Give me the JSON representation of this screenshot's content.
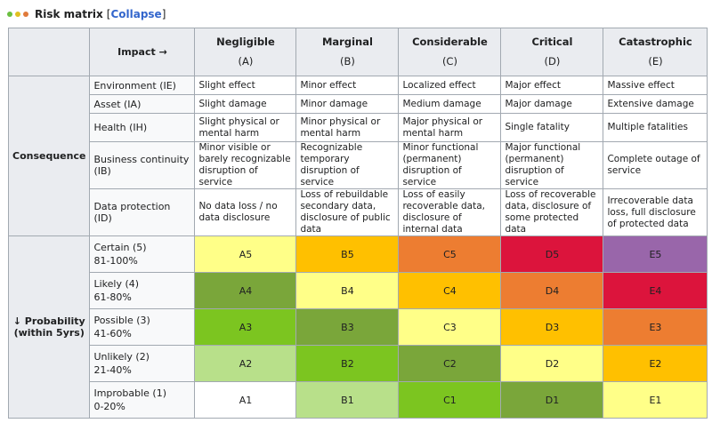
{
  "header": {
    "title": "Risk matrix",
    "collapse_open": "[",
    "collapse_label": "Collapse",
    "collapse_close": "]",
    "dot_colors": [
      "#6abf40",
      "#e0c020",
      "#e07a3a"
    ]
  },
  "table": {
    "corner_label": "Impact →",
    "impact_columns": [
      {
        "name": "Negligible",
        "code": "(A)"
      },
      {
        "name": "Marginal",
        "code": "(B)"
      },
      {
        "name": "Considerable",
        "code": "(C)"
      },
      {
        "name": "Critical",
        "code": "(D)"
      },
      {
        "name": "Catastrophic",
        "code": "(E)"
      }
    ],
    "consequence_label": "Consequence",
    "consequence_rows": [
      {
        "label": "Environment (IE)",
        "cells": [
          "Slight effect",
          "Minor effect",
          "Localized effect",
          "Major effect",
          "Massive effect"
        ]
      },
      {
        "label": "Asset (IA)",
        "cells": [
          "Slight damage",
          "Minor damage",
          "Medium damage",
          "Major damage",
          "Extensive damage"
        ]
      },
      {
        "label": "Health (IH)",
        "cells": [
          "Slight physical or mental harm",
          "Minor physical or mental harm",
          "Major physical or mental harm",
          "Single fatality",
          "Multiple fatalities"
        ]
      },
      {
        "label": "Business continuity (IB)",
        "cells": [
          "Minor visible or barely recognizable disruption of service",
          "Recognizable temporary disruption of service",
          "Minor functional (permanent) disruption of service",
          "Major functional (permanent) disruption of service",
          "Complete outage of service"
        ]
      },
      {
        "label": "Data protection (ID)",
        "cells": [
          "No data loss / no data disclosure",
          "Loss of rebuildable secondary data, disclosure of public data",
          "Loss of easily recoverable data, disclosure of internal data",
          "Loss of recoverable data, disclosure of some protected data",
          "Irrecoverable data loss, full disclosure of protected data"
        ]
      }
    ],
    "probability_label": "↓ Probability (within 5yrs)",
    "probability_rows": [
      {
        "name": "Certain (5)",
        "range": "81-100%",
        "cells": [
          {
            "label": "A5",
            "color": "#ffff88"
          },
          {
            "label": "B5",
            "color": "#ffc000"
          },
          {
            "label": "C5",
            "color": "#ed7d31"
          },
          {
            "label": "D5",
            "color": "#dc143c"
          },
          {
            "label": "E5",
            "color": "#9966aa"
          }
        ]
      },
      {
        "name": "Likely (4)",
        "range": "61-80%",
        "cells": [
          {
            "label": "A4",
            "color": "#7aa63a"
          },
          {
            "label": "B4",
            "color": "#ffff88"
          },
          {
            "label": "C4",
            "color": "#ffc000"
          },
          {
            "label": "D4",
            "color": "#ed7d31"
          },
          {
            "label": "E4",
            "color": "#dc143c"
          }
        ]
      },
      {
        "name": "Possible (3)",
        "range": "41-60%",
        "cells": [
          {
            "label": "A3",
            "color": "#7cc520"
          },
          {
            "label": "B3",
            "color": "#7aa63a"
          },
          {
            "label": "C3",
            "color": "#ffff88"
          },
          {
            "label": "D3",
            "color": "#ffc000"
          },
          {
            "label": "E3",
            "color": "#ed7d31"
          }
        ]
      },
      {
        "name": "Unlikely (2)",
        "range": "21-40%",
        "cells": [
          {
            "label": "A2",
            "color": "#b8e08a"
          },
          {
            "label": "B2",
            "color": "#7cc520"
          },
          {
            "label": "C2",
            "color": "#7aa63a"
          },
          {
            "label": "D2",
            "color": "#ffff88"
          },
          {
            "label": "E2",
            "color": "#ffc000"
          }
        ]
      },
      {
        "name": "Improbable (1)",
        "range": "0-20%",
        "cells": [
          {
            "label": "A1",
            "color": "#ffffff"
          },
          {
            "label": "B1",
            "color": "#b8e08a"
          },
          {
            "label": "C1",
            "color": "#7cc520"
          },
          {
            "label": "D1",
            "color": "#7aa63a"
          },
          {
            "label": "E1",
            "color": "#ffff88"
          }
        ]
      }
    ]
  }
}
